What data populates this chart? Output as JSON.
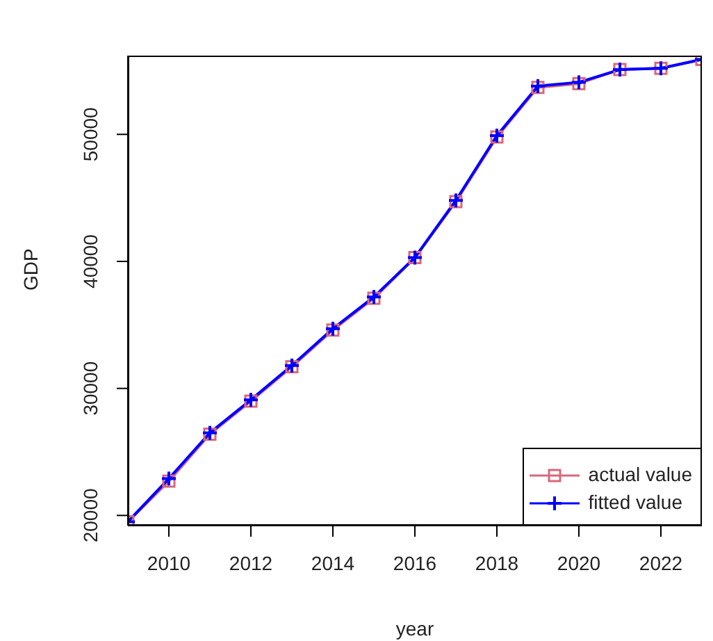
{
  "chart_data": {
    "type": "line",
    "xlabel": "year",
    "ylabel": "GDP",
    "x": [
      2009,
      2010,
      2011,
      2012,
      2013,
      2014,
      2015,
      2016,
      2017,
      2018,
      2019,
      2020,
      2021,
      2022,
      2023
    ],
    "series": [
      {
        "name": "actual value",
        "color": "#d9687a",
        "marker": "square",
        "values": [
          19500,
          22700,
          26400,
          29000,
          31700,
          34600,
          37100,
          40300,
          44700,
          49800,
          53700,
          54000,
          55100,
          55200,
          55900
        ]
      },
      {
        "name": "fitted value",
        "color": "#0000ff",
        "marker": "cross",
        "values": [
          19500,
          22900,
          26500,
          29100,
          31800,
          34700,
          37200,
          40300,
          44800,
          49900,
          53800,
          54100,
          55100,
          55200,
          55900
        ]
      }
    ],
    "xlim": [
      2009,
      2023
    ],
    "xticks": [
      2010,
      2012,
      2014,
      2016,
      2018,
      2020,
      2022
    ],
    "ylim": [
      19200,
      56200
    ],
    "yticks": [
      20000,
      30000,
      40000,
      50000
    ],
    "grid": false,
    "legend": "bottom right",
    "line_style": "solid"
  }
}
